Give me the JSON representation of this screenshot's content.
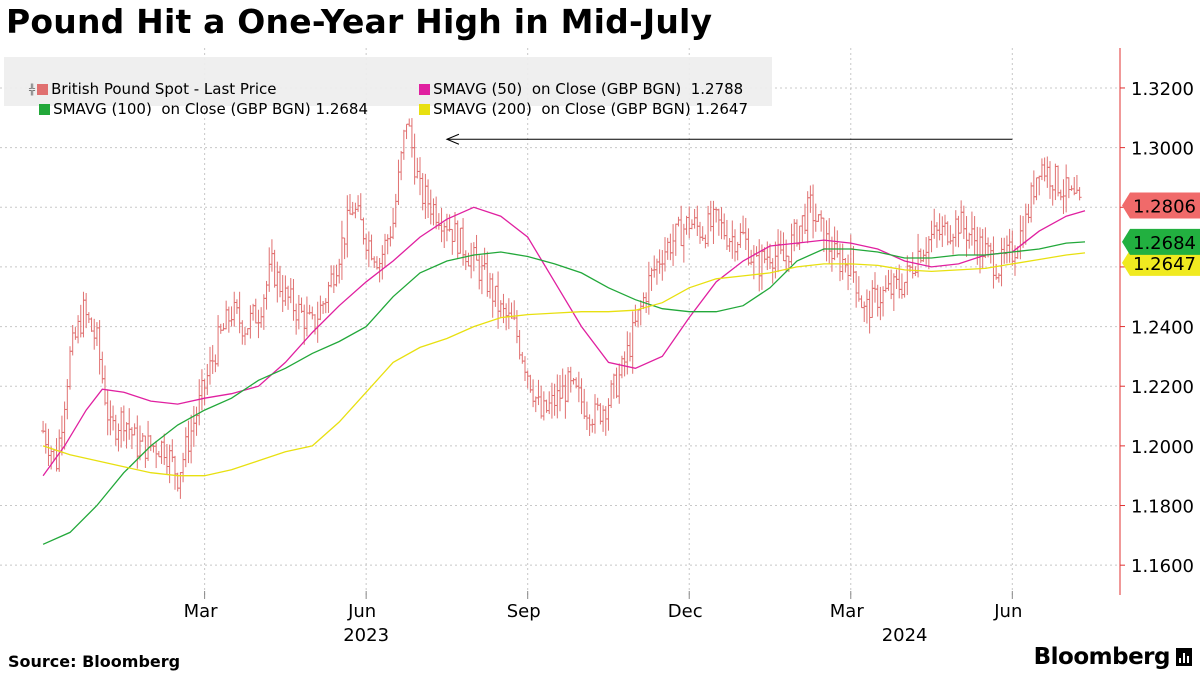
{
  "title": "Pound Hit a One-Year High in Mid-July",
  "footer": {
    "source": "Source: Bloomberg",
    "brand": "Bloomberg"
  },
  "colors": {
    "price": "#e07070",
    "sma50": "#e020a0",
    "sma100": "#22a83a",
    "sma200": "#e8e010",
    "axis": "#e03030"
  },
  "legend": [
    {
      "label": "British Pound Spot - Last Price",
      "color": "#e07070",
      "icon": "candlestick-icon"
    },
    {
      "label": "SMAVG (50)  on Close (GBP BGN)  1.2788",
      "color": "#e020a0"
    },
    {
      "label": "SMAVG (100)  on Close (GBP BGN) 1.2684",
      "color": "#22a83a"
    },
    {
      "label": "SMAVG (200)  on Close (GBP BGN) 1.2647",
      "color": "#e8e010"
    }
  ],
  "chart_data": {
    "type": "line",
    "title": "Pound Hit a One-Year High in Mid-July",
    "y_range": [
      1.15,
      1.3334
    ],
    "x_range": [
      "2022-12-01",
      "2024-08-01"
    ],
    "y_ticks": [
      "1.3200",
      "1.3000",
      "1.2800",
      "1.2600",
      "1.2400",
      "1.2200",
      "1.2000",
      "1.1800",
      "1.1600"
    ],
    "x_ticks": [
      {
        "label": "Mar",
        "t": 3.0
      },
      {
        "label": "Jun",
        "t": 6.0
      },
      {
        "label": "Sep",
        "t": 9.0
      },
      {
        "label": "Dec",
        "t": 12.0
      },
      {
        "label": "Mar",
        "t": 15.0
      },
      {
        "label": "Jun",
        "t": 18.0
      }
    ],
    "year_labels": [
      {
        "label": "2023",
        "t": 6.0
      },
      {
        "label": "2024",
        "t": 16.0
      }
    ],
    "annotation": {
      "type": "arrow",
      "description": "one-year high reference",
      "from": {
        "t": 18.0,
        "y": 1.3028
      },
      "to": {
        "t": 7.5,
        "y": 1.3028
      }
    },
    "last_value_labels": [
      {
        "label": "1.2806",
        "value": 1.2806,
        "color": "#f06a6a"
      },
      {
        "label": "1.2684",
        "value": 1.2684,
        "color": "#22b040"
      },
      {
        "label": "1.2647",
        "value": 1.2647,
        "color": "#f0ea20"
      }
    ],
    "series": [
      {
        "name": "British Pound Spot - Last Price",
        "style": "bars",
        "color": "#e07070",
        "points": [
          [
            0.0,
            1.205
          ],
          [
            0.25,
            1.195
          ],
          [
            0.5,
            1.23
          ],
          [
            0.75,
            1.245
          ],
          [
            1.0,
            1.235
          ],
          [
            1.25,
            1.205
          ],
          [
            1.5,
            1.21
          ],
          [
            1.75,
            1.2
          ],
          [
            2.0,
            1.2
          ],
          [
            2.25,
            1.2
          ],
          [
            2.5,
            1.19
          ],
          [
            2.75,
            1.205
          ],
          [
            3.0,
            1.22
          ],
          [
            3.25,
            1.235
          ],
          [
            3.5,
            1.245
          ],
          [
            3.75,
            1.24
          ],
          [
            4.0,
            1.245
          ],
          [
            4.25,
            1.26
          ],
          [
            4.5,
            1.25
          ],
          [
            4.75,
            1.245
          ],
          [
            5.0,
            1.24
          ],
          [
            5.25,
            1.25
          ],
          [
            5.5,
            1.265
          ],
          [
            5.75,
            1.28
          ],
          [
            6.0,
            1.27
          ],
          [
            6.25,
            1.262
          ],
          [
            6.5,
            1.275
          ],
          [
            6.75,
            1.31
          ],
          [
            7.0,
            1.285
          ],
          [
            7.25,
            1.28
          ],
          [
            7.5,
            1.275
          ],
          [
            7.75,
            1.268
          ],
          [
            8.0,
            1.262
          ],
          [
            8.25,
            1.255
          ],
          [
            8.5,
            1.245
          ],
          [
            8.75,
            1.24
          ],
          [
            9.0,
            1.225
          ],
          [
            9.25,
            1.21
          ],
          [
            9.5,
            1.215
          ],
          [
            9.75,
            1.22
          ],
          [
            10.0,
            1.215
          ],
          [
            10.25,
            1.21
          ],
          [
            10.5,
            1.215
          ],
          [
            10.75,
            1.225
          ],
          [
            11.0,
            1.24
          ],
          [
            11.25,
            1.255
          ],
          [
            11.5,
            1.265
          ],
          [
            11.75,
            1.27
          ],
          [
            12.0,
            1.275
          ],
          [
            12.25,
            1.272
          ],
          [
            12.5,
            1.275
          ],
          [
            12.75,
            1.27
          ],
          [
            13.0,
            1.27
          ],
          [
            13.25,
            1.26
          ],
          [
            13.5,
            1.265
          ],
          [
            13.75,
            1.262
          ],
          [
            14.0,
            1.272
          ],
          [
            14.25,
            1.28
          ],
          [
            14.5,
            1.27
          ],
          [
            14.75,
            1.262
          ],
          [
            15.0,
            1.262
          ],
          [
            15.25,
            1.245
          ],
          [
            15.5,
            1.25
          ],
          [
            15.75,
            1.252
          ],
          [
            16.0,
            1.255
          ],
          [
            16.25,
            1.265
          ],
          [
            16.5,
            1.27
          ],
          [
            16.75,
            1.272
          ],
          [
            17.0,
            1.275
          ],
          [
            17.25,
            1.27
          ],
          [
            17.5,
            1.265
          ],
          [
            17.75,
            1.26
          ],
          [
            18.0,
            1.265
          ],
          [
            18.25,
            1.275
          ],
          [
            18.5,
            1.295
          ],
          [
            18.75,
            1.29
          ],
          [
            19.0,
            1.285
          ],
          [
            19.25,
            1.28
          ]
        ]
      },
      {
        "name": "SMAVG (50)",
        "color": "#e020a0",
        "points": [
          [
            0.0,
            1.19
          ],
          [
            0.4,
            1.2
          ],
          [
            0.8,
            1.212
          ],
          [
            1.1,
            1.219
          ],
          [
            1.5,
            1.218
          ],
          [
            2.0,
            1.215
          ],
          [
            2.5,
            1.214
          ],
          [
            3.0,
            1.216
          ],
          [
            3.5,
            1.2175
          ],
          [
            4.0,
            1.22
          ],
          [
            4.5,
            1.228
          ],
          [
            5.0,
            1.238
          ],
          [
            5.5,
            1.247
          ],
          [
            6.0,
            1.255
          ],
          [
            6.5,
            1.262
          ],
          [
            7.0,
            1.27
          ],
          [
            7.5,
            1.276
          ],
          [
            8.0,
            1.28
          ],
          [
            8.5,
            1.277
          ],
          [
            9.0,
            1.27
          ],
          [
            9.5,
            1.255
          ],
          [
            10.0,
            1.24
          ],
          [
            10.5,
            1.228
          ],
          [
            11.0,
            1.226
          ],
          [
            11.5,
            1.23
          ],
          [
            12.0,
            1.243
          ],
          [
            12.5,
            1.255
          ],
          [
            13.0,
            1.262
          ],
          [
            13.5,
            1.267
          ],
          [
            14.0,
            1.268
          ],
          [
            14.5,
            1.269
          ],
          [
            15.0,
            1.268
          ],
          [
            15.5,
            1.266
          ],
          [
            16.0,
            1.262
          ],
          [
            16.5,
            1.26
          ],
          [
            17.0,
            1.261
          ],
          [
            17.5,
            1.264
          ],
          [
            18.0,
            1.265
          ],
          [
            18.5,
            1.272
          ],
          [
            19.0,
            1.277
          ],
          [
            19.35,
            1.2788
          ]
        ]
      },
      {
        "name": "SMAVG (100)",
        "color": "#22a83a",
        "points": [
          [
            0.0,
            1.167
          ],
          [
            0.5,
            1.171
          ],
          [
            1.0,
            1.18
          ],
          [
            1.5,
            1.191
          ],
          [
            2.0,
            1.2
          ],
          [
            2.5,
            1.207
          ],
          [
            3.0,
            1.212
          ],
          [
            3.5,
            1.216
          ],
          [
            4.0,
            1.222
          ],
          [
            4.5,
            1.226
          ],
          [
            5.0,
            1.231
          ],
          [
            5.5,
            1.235
          ],
          [
            6.0,
            1.24
          ],
          [
            6.5,
            1.25
          ],
          [
            7.0,
            1.258
          ],
          [
            7.5,
            1.262
          ],
          [
            8.0,
            1.264
          ],
          [
            8.5,
            1.265
          ],
          [
            9.0,
            1.2635
          ],
          [
            9.5,
            1.261
          ],
          [
            10.0,
            1.258
          ],
          [
            10.5,
            1.253
          ],
          [
            11.0,
            1.249
          ],
          [
            11.5,
            1.246
          ],
          [
            12.0,
            1.245
          ],
          [
            12.5,
            1.245
          ],
          [
            13.0,
            1.247
          ],
          [
            13.5,
            1.253
          ],
          [
            14.0,
            1.262
          ],
          [
            14.5,
            1.266
          ],
          [
            15.0,
            1.266
          ],
          [
            15.5,
            1.265
          ],
          [
            16.0,
            1.263
          ],
          [
            16.5,
            1.263
          ],
          [
            17.0,
            1.264
          ],
          [
            17.5,
            1.264
          ],
          [
            18.0,
            1.265
          ],
          [
            18.5,
            1.266
          ],
          [
            19.0,
            1.268
          ],
          [
            19.35,
            1.2684
          ]
        ]
      },
      {
        "name": "SMAVG (200)",
        "color": "#e8e010",
        "points": [
          [
            0.0,
            1.2
          ],
          [
            0.5,
            1.197
          ],
          [
            1.0,
            1.195
          ],
          [
            1.5,
            1.193
          ],
          [
            2.0,
            1.191
          ],
          [
            2.5,
            1.19
          ],
          [
            3.0,
            1.19
          ],
          [
            3.5,
            1.192
          ],
          [
            4.0,
            1.195
          ],
          [
            4.5,
            1.198
          ],
          [
            5.0,
            1.2
          ],
          [
            5.5,
            1.208
          ],
          [
            6.0,
            1.218
          ],
          [
            6.5,
            1.228
          ],
          [
            7.0,
            1.233
          ],
          [
            7.5,
            1.236
          ],
          [
            8.0,
            1.24
          ],
          [
            8.5,
            1.243
          ],
          [
            9.0,
            1.244
          ],
          [
            9.5,
            1.2445
          ],
          [
            10.0,
            1.245
          ],
          [
            10.5,
            1.245
          ],
          [
            11.0,
            1.2455
          ],
          [
            11.5,
            1.248
          ],
          [
            12.0,
            1.253
          ],
          [
            12.5,
            1.256
          ],
          [
            13.0,
            1.257
          ],
          [
            13.5,
            1.258
          ],
          [
            14.0,
            1.26
          ],
          [
            14.5,
            1.261
          ],
          [
            15.0,
            1.261
          ],
          [
            15.5,
            1.2605
          ],
          [
            16.0,
            1.259
          ],
          [
            16.5,
            1.2585
          ],
          [
            17.0,
            1.259
          ],
          [
            17.5,
            1.2595
          ],
          [
            18.0,
            1.261
          ],
          [
            18.5,
            1.2625
          ],
          [
            19.0,
            1.264
          ],
          [
            19.35,
            1.2647
          ]
        ]
      }
    ]
  }
}
